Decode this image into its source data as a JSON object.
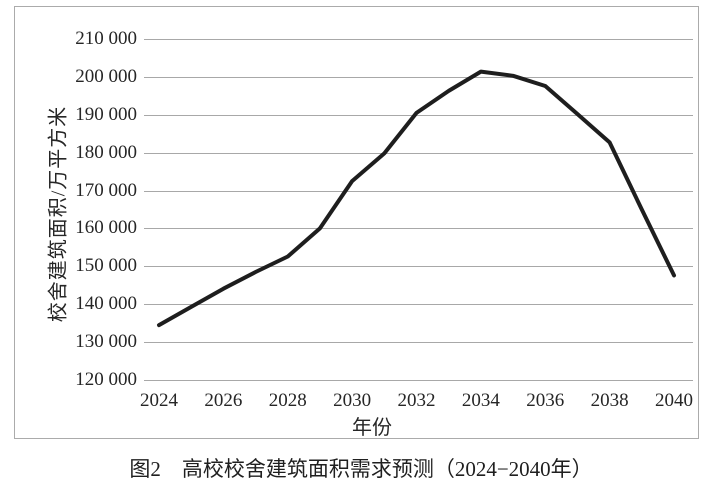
{
  "caption": "图2　高校校舍建筑面积需求预测（2024−2040年）",
  "chart_data": {
    "type": "line",
    "title": "",
    "xlabel": "年份",
    "ylabel": "校舍建筑面积/万平方米",
    "categories": [
      2024,
      2025,
      2026,
      2027,
      2028,
      2029,
      2030,
      2031,
      2032,
      2033,
      2034,
      2035,
      2036,
      2037,
      2038,
      2039,
      2040
    ],
    "values": [
      134500,
      139300,
      144100,
      148500,
      152600,
      160000,
      172500,
      179800,
      190500,
      196300,
      201400,
      200300,
      197600,
      190200,
      182700,
      165000,
      147600
    ],
    "x_tick_labels": [
      "2024",
      "2026",
      "2028",
      "2030",
      "2032",
      "2034",
      "2036",
      "2038",
      "2040"
    ],
    "y_tick_labels": [
      "210 000",
      "200 000",
      "190 000",
      "180 000",
      "170 000",
      "160 000",
      "150 000",
      "140 000",
      "130 000",
      "120 000"
    ],
    "ylim": [
      120000,
      210000
    ],
    "ytick_step": 10000,
    "grid": "horizontal-only",
    "legend": "none",
    "line_color": "#1e1e1e",
    "line_width": 4,
    "grid_color": "#a8a8a8",
    "border_color": "#ababab",
    "text_color": "#262626"
  }
}
